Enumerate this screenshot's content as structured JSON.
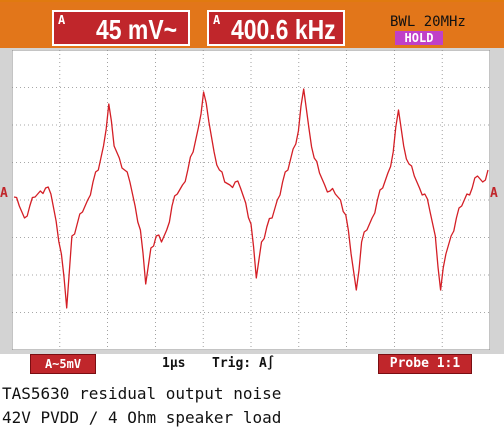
{
  "readouts": [
    {
      "channel": "A",
      "value": "45 mV~"
    },
    {
      "channel": "A",
      "value": "400.6 kHz"
    }
  ],
  "bandwidth_limit": "BWL 20MHz",
  "hold_badge": "HOLD",
  "channel_marker": "A",
  "channel_scale": "A~5mV",
  "timebase": "1µs",
  "trigger": "Trig: A∫",
  "probe": "Probe 1:1",
  "caption": {
    "line1": "TAS5630 residual output noise",
    "line2": "42V PVDD / 4 Ohm speaker load"
  },
  "colors": {
    "trace": "#d41f26",
    "top_bar": "#e2761a",
    "readout_bg": "#c0262b",
    "hold_bg": "#c040c8",
    "grid": "#8a8a8a"
  },
  "trace_samples": [
    0.05,
    -0.1,
    -0.3,
    -0.1,
    0.05,
    0.15,
    0.2,
    0.1,
    -0.35,
    -0.9,
    -1.8,
    -0.6,
    -0.4,
    -0.2,
    0.0,
    0.3,
    0.5,
    0.9,
    1.6,
    0.9,
    0.7,
    0.5,
    0.3,
    -0.1,
    -0.5,
    -1.4,
    -0.8,
    -0.6,
    -0.7,
    -0.5,
    -0.1,
    0.1,
    0.25,
    0.5,
    0.8,
    1.2,
    1.8,
    1.3,
    0.8,
    0.5,
    0.3,
    0.25,
    0.3,
    0.2,
    -0.05,
    -0.4,
    -1.3,
    -0.7,
    -0.45,
    -0.3,
    0.0,
    0.3,
    0.5,
    0.85,
    1.15,
    1.85,
    1.2,
    0.7,
    0.45,
    0.25,
    0.15,
    0.1,
    0.0,
    -0.25,
    -0.9,
    -1.5,
    -0.7,
    -0.5,
    -0.3,
    0.0,
    0.2,
    0.45,
    0.8,
    1.5,
    0.9,
    0.6,
    0.4,
    0.2,
    0.1,
    -0.2,
    -0.6,
    -1.5,
    -0.9,
    -0.6,
    -0.3,
    -0.1,
    0.1,
    0.2,
    0.4,
    0.3,
    0.5
  ]
}
